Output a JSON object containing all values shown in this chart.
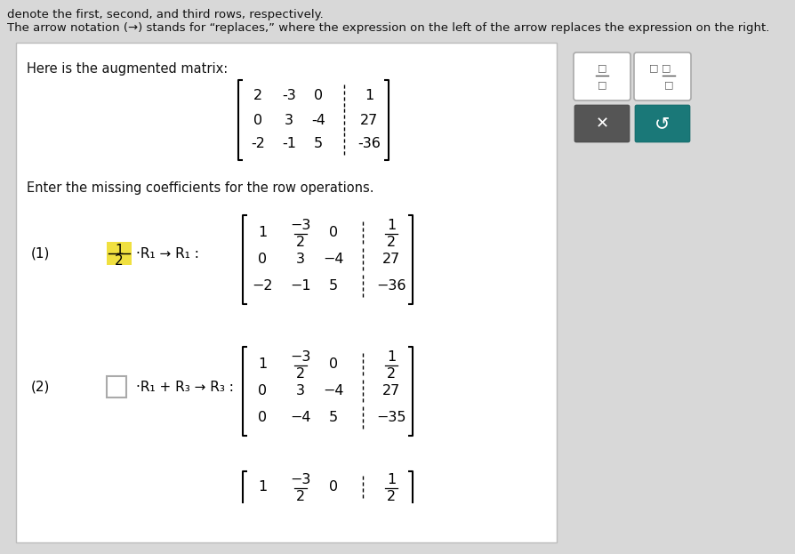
{
  "bg_color": "#d8d8d8",
  "panel_facecolor": "#ffffff",
  "panel_border": "#bbbbbb",
  "text_color": "#111111",
  "title_line1": "denote the first, second, and third rows, respectively.",
  "title_line2": "The arrow notation (→) stands for “replaces,” where the expression on the left of the arrow replaces the expression on the right.",
  "aug_label": "Here is the augmented matrix:",
  "enter_text": "Enter the missing coefficients for the row operations.",
  "op1_label": "(1)",
  "op1_frac_highlight": "#f0e040",
  "op1_text": "·R₁ → R₁ :",
  "op2_label": "(2)",
  "op2_text": "·R₁ + R₃ → R₃ :",
  "btn_x_color": "#555555",
  "btn_s_color": "#1a7878"
}
